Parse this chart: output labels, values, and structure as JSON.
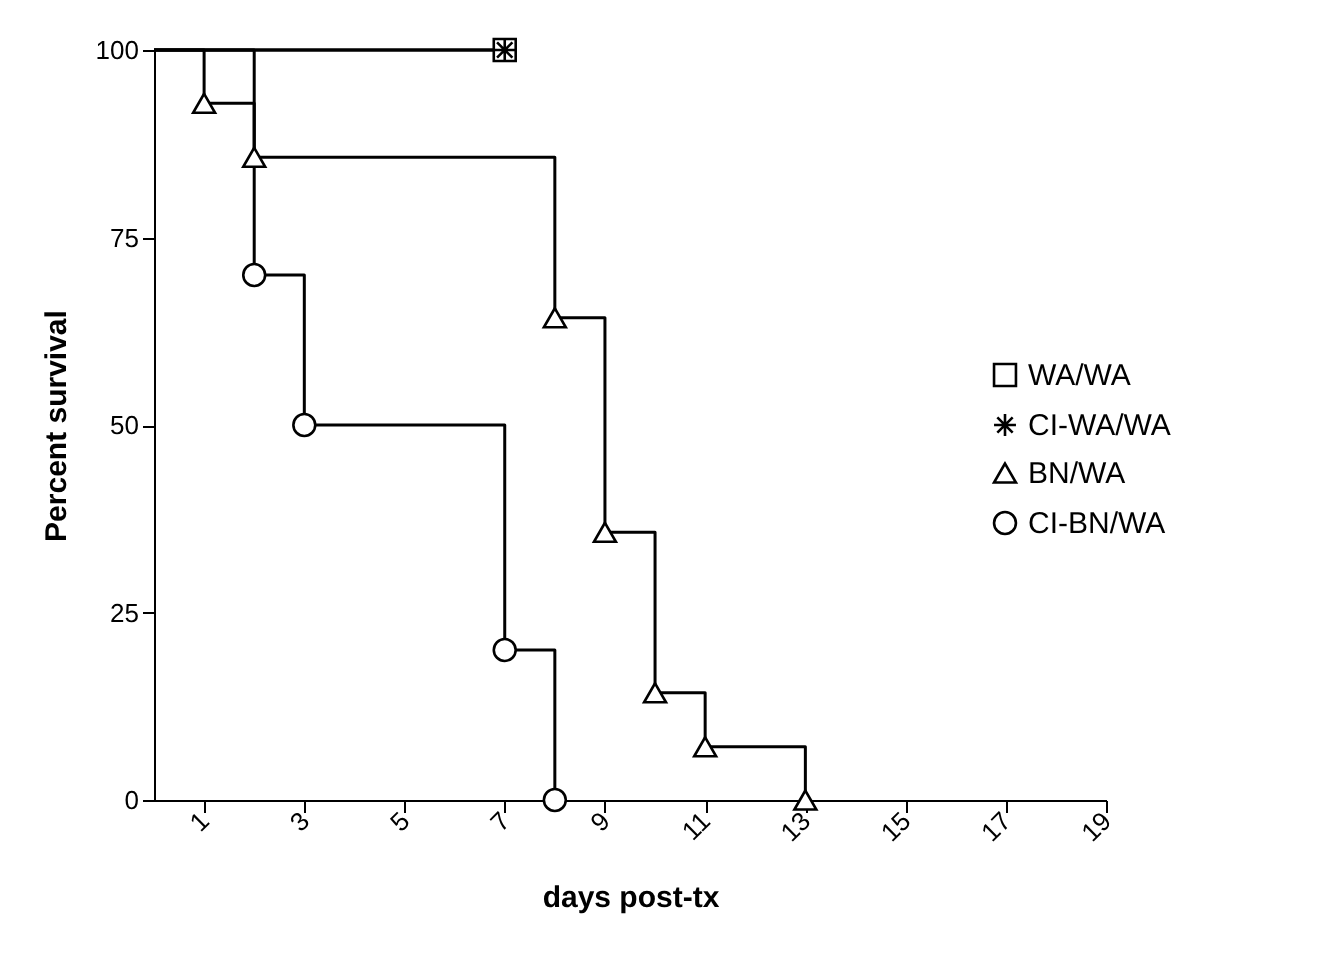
{
  "chart_data": {
    "type": "step",
    "xlabel": "days post-tx",
    "ylabel": "Percent survival",
    "xlim": [
      0,
      19
    ],
    "xticks": [
      1,
      3,
      5,
      7,
      9,
      11,
      13,
      15,
      17,
      19
    ],
    "ylim": [
      0,
      100
    ],
    "yticks": [
      0,
      25,
      50,
      75,
      100
    ],
    "grid": false,
    "legend": "right",
    "line_style": "solid",
    "series": [
      {
        "name": "WA/WA",
        "color": "#000000",
        "marker": "square",
        "x": [
          0,
          7
        ],
        "values": [
          100,
          100
        ]
      },
      {
        "name": "CI-WA/WA",
        "color": "#000000",
        "marker": "cross",
        "x": [
          0,
          7
        ],
        "values": [
          100,
          100
        ]
      },
      {
        "name": "BN/WA",
        "color": "#000000",
        "marker": "triangle",
        "x": [
          0,
          1,
          2,
          8,
          9,
          10,
          11,
          13
        ],
        "values": [
          100,
          92.9,
          85.7,
          64.3,
          35.7,
          14.3,
          7.1,
          0
        ]
      },
      {
        "name": "CI-BN/WA",
        "color": "#000000",
        "marker": "circle",
        "x": [
          0,
          2,
          3,
          7,
          8
        ],
        "values": [
          100,
          70,
          50,
          20,
          0
        ]
      }
    ]
  }
}
